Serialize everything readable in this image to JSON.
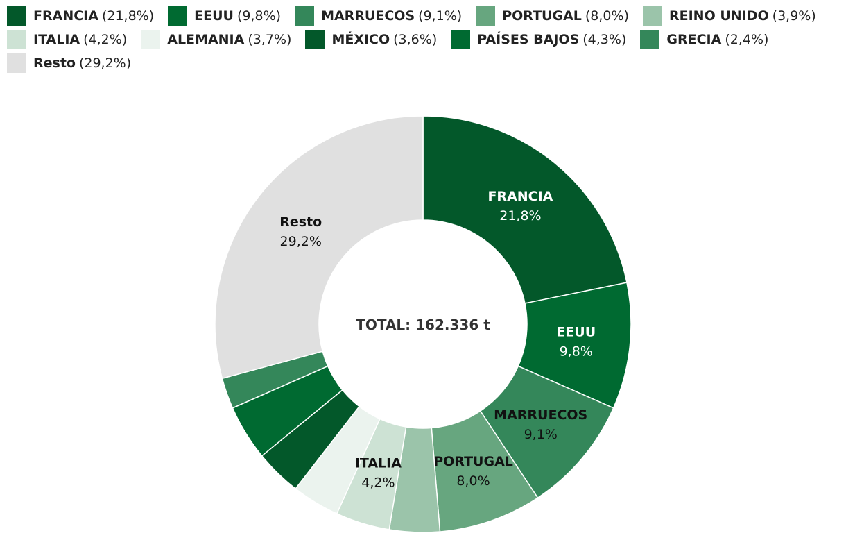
{
  "chart_data": {
    "type": "pie",
    "donut": true,
    "center_text": "TOTAL: 162.336 t",
    "slices": [
      {
        "name": "FRANCIA",
        "value": 21.8,
        "label": "21,8%",
        "color": "#03582a",
        "show_label": true,
        "text_color": "#ffffff"
      },
      {
        "name": "EEUU",
        "value": 9.8,
        "label": "9,8%",
        "color": "#006a31",
        "show_label": true,
        "text_color": "#ffffff"
      },
      {
        "name": "MARRUECOS",
        "value": 9.1,
        "label": "9,1%",
        "color": "#34875a",
        "show_label": true,
        "text_color": "#111111"
      },
      {
        "name": "PORTUGAL",
        "value": 8.0,
        "label": "8,0%",
        "color": "#67a67f",
        "show_label": true,
        "text_color": "#111111"
      },
      {
        "name": "REINO UNIDO",
        "value": 3.9,
        "label": "3,9%",
        "color": "#9bc4aa",
        "show_label": false,
        "text_color": "#111111"
      },
      {
        "name": "ITALIA",
        "value": 4.2,
        "label": "4,2%",
        "color": "#cde2d4",
        "show_label": true,
        "text_color": "#111111"
      },
      {
        "name": "ALEMANIA",
        "value": 3.7,
        "label": "3,7%",
        "color": "#ebf3ee",
        "show_label": false,
        "text_color": "#111111"
      },
      {
        "name": "MÉXICO",
        "value": 3.6,
        "label": "3,6%",
        "color": "#03582a",
        "show_label": false,
        "text_color": "#ffffff"
      },
      {
        "name": "PAÍSES BAJOS",
        "value": 4.3,
        "label": "4,3%",
        "color": "#006a31",
        "show_label": false,
        "text_color": "#ffffff"
      },
      {
        "name": "GRECIA",
        "value": 2.4,
        "label": "2,4%",
        "color": "#34875a",
        "show_label": false,
        "text_color": "#ffffff"
      },
      {
        "name": "Resto",
        "value": 29.2,
        "label": "29,2%",
        "color": "#e0e0e0",
        "show_label": true,
        "text_color": "#111111"
      }
    ],
    "legend_position": "top-left"
  }
}
